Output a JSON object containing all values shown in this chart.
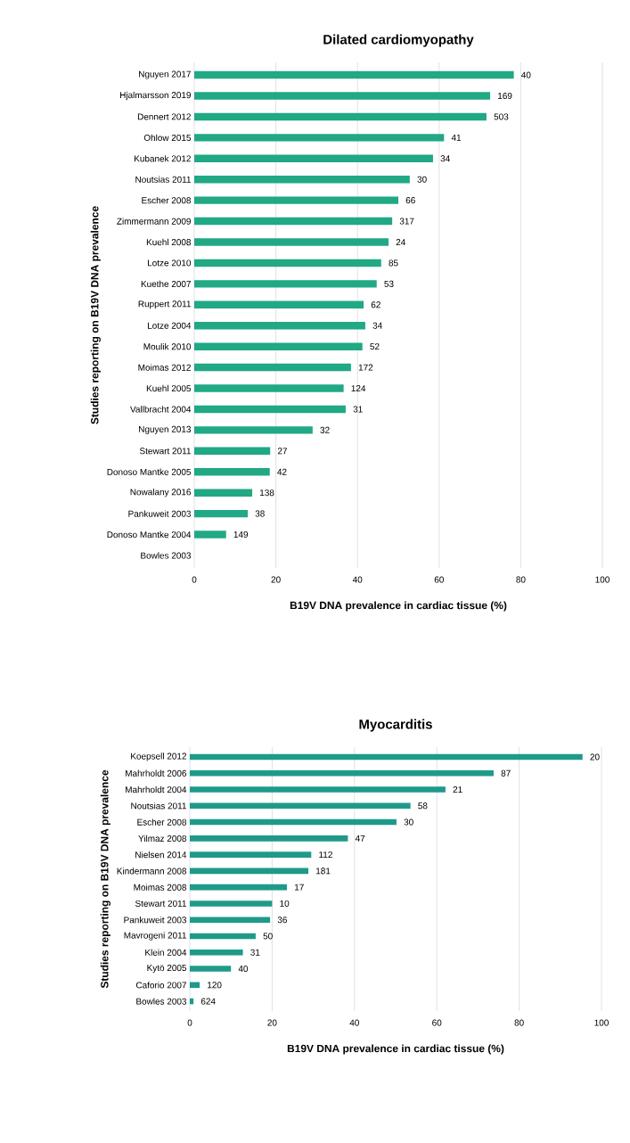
{
  "chart_data": [
    {
      "type": "bar",
      "orientation": "horizontal",
      "title": "Dilated cardiomyopathy",
      "xlabel": "B19V DNA prevalence in cardiac tissue (%)",
      "ylabel": "Studies reporting on B19V DNA prevalence",
      "color": "#21a884",
      "grid": "x",
      "xlim": [
        0,
        100
      ],
      "xticks": [
        0,
        20,
        40,
        60,
        80,
        100
      ],
      "categories": [
        "Nguyen 2017",
        "Hjalmarsson 2019",
        "Dennert 2012",
        "Ohlow 2015",
        "Kubanek 2012",
        "Noutsias 2011",
        "Escher 2008",
        "Zimmermann 2009",
        "Kuehl 2008",
        "Lotze 2010",
        "Kuethe 2007",
        "Ruppert 2011",
        "Lotze 2004",
        "Moulik 2010",
        "Moimas 2012",
        "Kuehl 2005",
        "Vallbracht 2004",
        "Nguyen 2013",
        "Stewart 2011",
        "Donoso Mantke 2005",
        "Nowalany 2016",
        "Pankuweit 2003",
        "Donoso Mantke 2004",
        "Bowles 2003"
      ],
      "values": [
        78.3,
        72.5,
        71.6,
        61.2,
        58.5,
        52.8,
        50,
        48.5,
        47.6,
        45.8,
        44.7,
        41.5,
        41.9,
        41.2,
        38.4,
        36.6,
        37.1,
        29,
        18.6,
        18.5,
        14.2,
        13.1,
        7.8,
        0
      ],
      "annotations": [
        {
          "text": "40",
          "x": 78.3,
          "y": "Nguyen 2017"
        },
        {
          "text": "169",
          "x": 72.5,
          "y": "Hjalmarsson 2019"
        },
        {
          "text": "503",
          "x": 71.6,
          "y": "Dennert 2012"
        },
        {
          "text": "41",
          "x": 61.2,
          "y": "Ohlow 2015"
        },
        {
          "text": "34",
          "x": 58.5,
          "y": "Kubanek 2012"
        },
        {
          "text": "30",
          "x": 52.8,
          "y": "Noutsias 2011"
        },
        {
          "text": "66",
          "x": 50,
          "y": "Escher 2008"
        },
        {
          "text": "317",
          "x": 48.5,
          "y": "Zimmermann 2009"
        },
        {
          "text": "24",
          "x": 47.6,
          "y": "Kuehl 2008"
        },
        {
          "text": "85",
          "x": 45.8,
          "y": "Lotze 2010"
        },
        {
          "text": "53",
          "x": 44.7,
          "y": "Kuethe 2007"
        },
        {
          "text": "62",
          "x": 41.5,
          "y": "Ruppert 2011"
        },
        {
          "text": "34",
          "x": 41.9,
          "y": "Lotze 2004"
        },
        {
          "text": "52",
          "x": 41.2,
          "y": "Moulik 2010"
        },
        {
          "text": "172",
          "x": 38.4,
          "y": "Moimas 2012"
        },
        {
          "text": "124",
          "x": 36.6,
          "y": "Kuehl 2005"
        },
        {
          "text": "31",
          "x": 37.1,
          "y": "Vallbracht 2004"
        },
        {
          "text": "32",
          "x": 29,
          "y": "Nguyen 2013"
        },
        {
          "text": "27",
          "x": 18.6,
          "y": "Stewart 2011"
        },
        {
          "text": "42",
          "x": 18.5,
          "y": "Donoso Mantke 2005"
        },
        {
          "text": "138",
          "x": 14.2,
          "y": "Nowalany 2016"
        },
        {
          "text": "38",
          "x": 13.1,
          "y": "Pankuweit 2003"
        },
        {
          "text": "149",
          "x": 7.8,
          "y": "Donoso Mantke 2004"
        }
      ]
    },
    {
      "type": "bar",
      "orientation": "horizontal",
      "title": "Myocarditis",
      "xlabel": "B19V DNA prevalence in cardiac tissue (%)",
      "ylabel": "Studies reporting on B19V DNA prevalence",
      "color": "#1f9a8a",
      "grid": "x",
      "xlim": [
        0,
        100
      ],
      "xticks": [
        0,
        20,
        40,
        60,
        80,
        100
      ],
      "categories": [
        "Koepsell 2012",
        "Mahrholdt 2006",
        "Mahrholdt 2004",
        "Noutsias 2011",
        "Escher 2008",
        "Yilmaz 2008",
        "Nielsen 2014",
        "Kindermann 2008",
        "Moimas 2008",
        "Stewart 2011",
        "Pankuweit 2003",
        "Mavrogeni 2011",
        "Klein 2004",
        "Kytö 2005",
        "Caforio 2007",
        "Bowles 2003"
      ],
      "values": [
        95.4,
        73.8,
        62.1,
        53.6,
        50.2,
        38.4,
        29.5,
        28.8,
        23.6,
        20,
        19.5,
        16,
        12.9,
        10,
        2.4,
        0.9
      ],
      "annotations": [
        {
          "text": "20",
          "x": 95.4,
          "y": "Koepsell 2012"
        },
        {
          "text": "87",
          "x": 73.8,
          "y": "Mahrholdt 2006"
        },
        {
          "text": "21",
          "x": 62.1,
          "y": "Mahrholdt 2004"
        },
        {
          "text": "58",
          "x": 53.6,
          "y": "Noutsias 2011"
        },
        {
          "text": "30",
          "x": 50.2,
          "y": "Escher 2008"
        },
        {
          "text": "47",
          "x": 38.4,
          "y": "Yilmaz 2008"
        },
        {
          "text": "112",
          "x": 29.5,
          "y": "Nielsen 2014"
        },
        {
          "text": "181",
          "x": 28.8,
          "y": "Kindermann 2008"
        },
        {
          "text": "17",
          "x": 23.6,
          "y": "Moimas 2008"
        },
        {
          "text": "10",
          "x": 20,
          "y": "Stewart 2011"
        },
        {
          "text": "36",
          "x": 19.5,
          "y": "Pankuweit 2003"
        },
        {
          "text": "50",
          "x": 16,
          "y": "Mavrogeni 2011"
        },
        {
          "text": "31",
          "x": 12.9,
          "y": "Klein 2004"
        },
        {
          "text": "40",
          "x": 10,
          "y": "Kytö 2005"
        },
        {
          "text": "120",
          "x": 2.4,
          "y": "Caforio 2007"
        },
        {
          "text": "624",
          "x": 0.9,
          "y": "Bowles 2003"
        }
      ]
    }
  ]
}
